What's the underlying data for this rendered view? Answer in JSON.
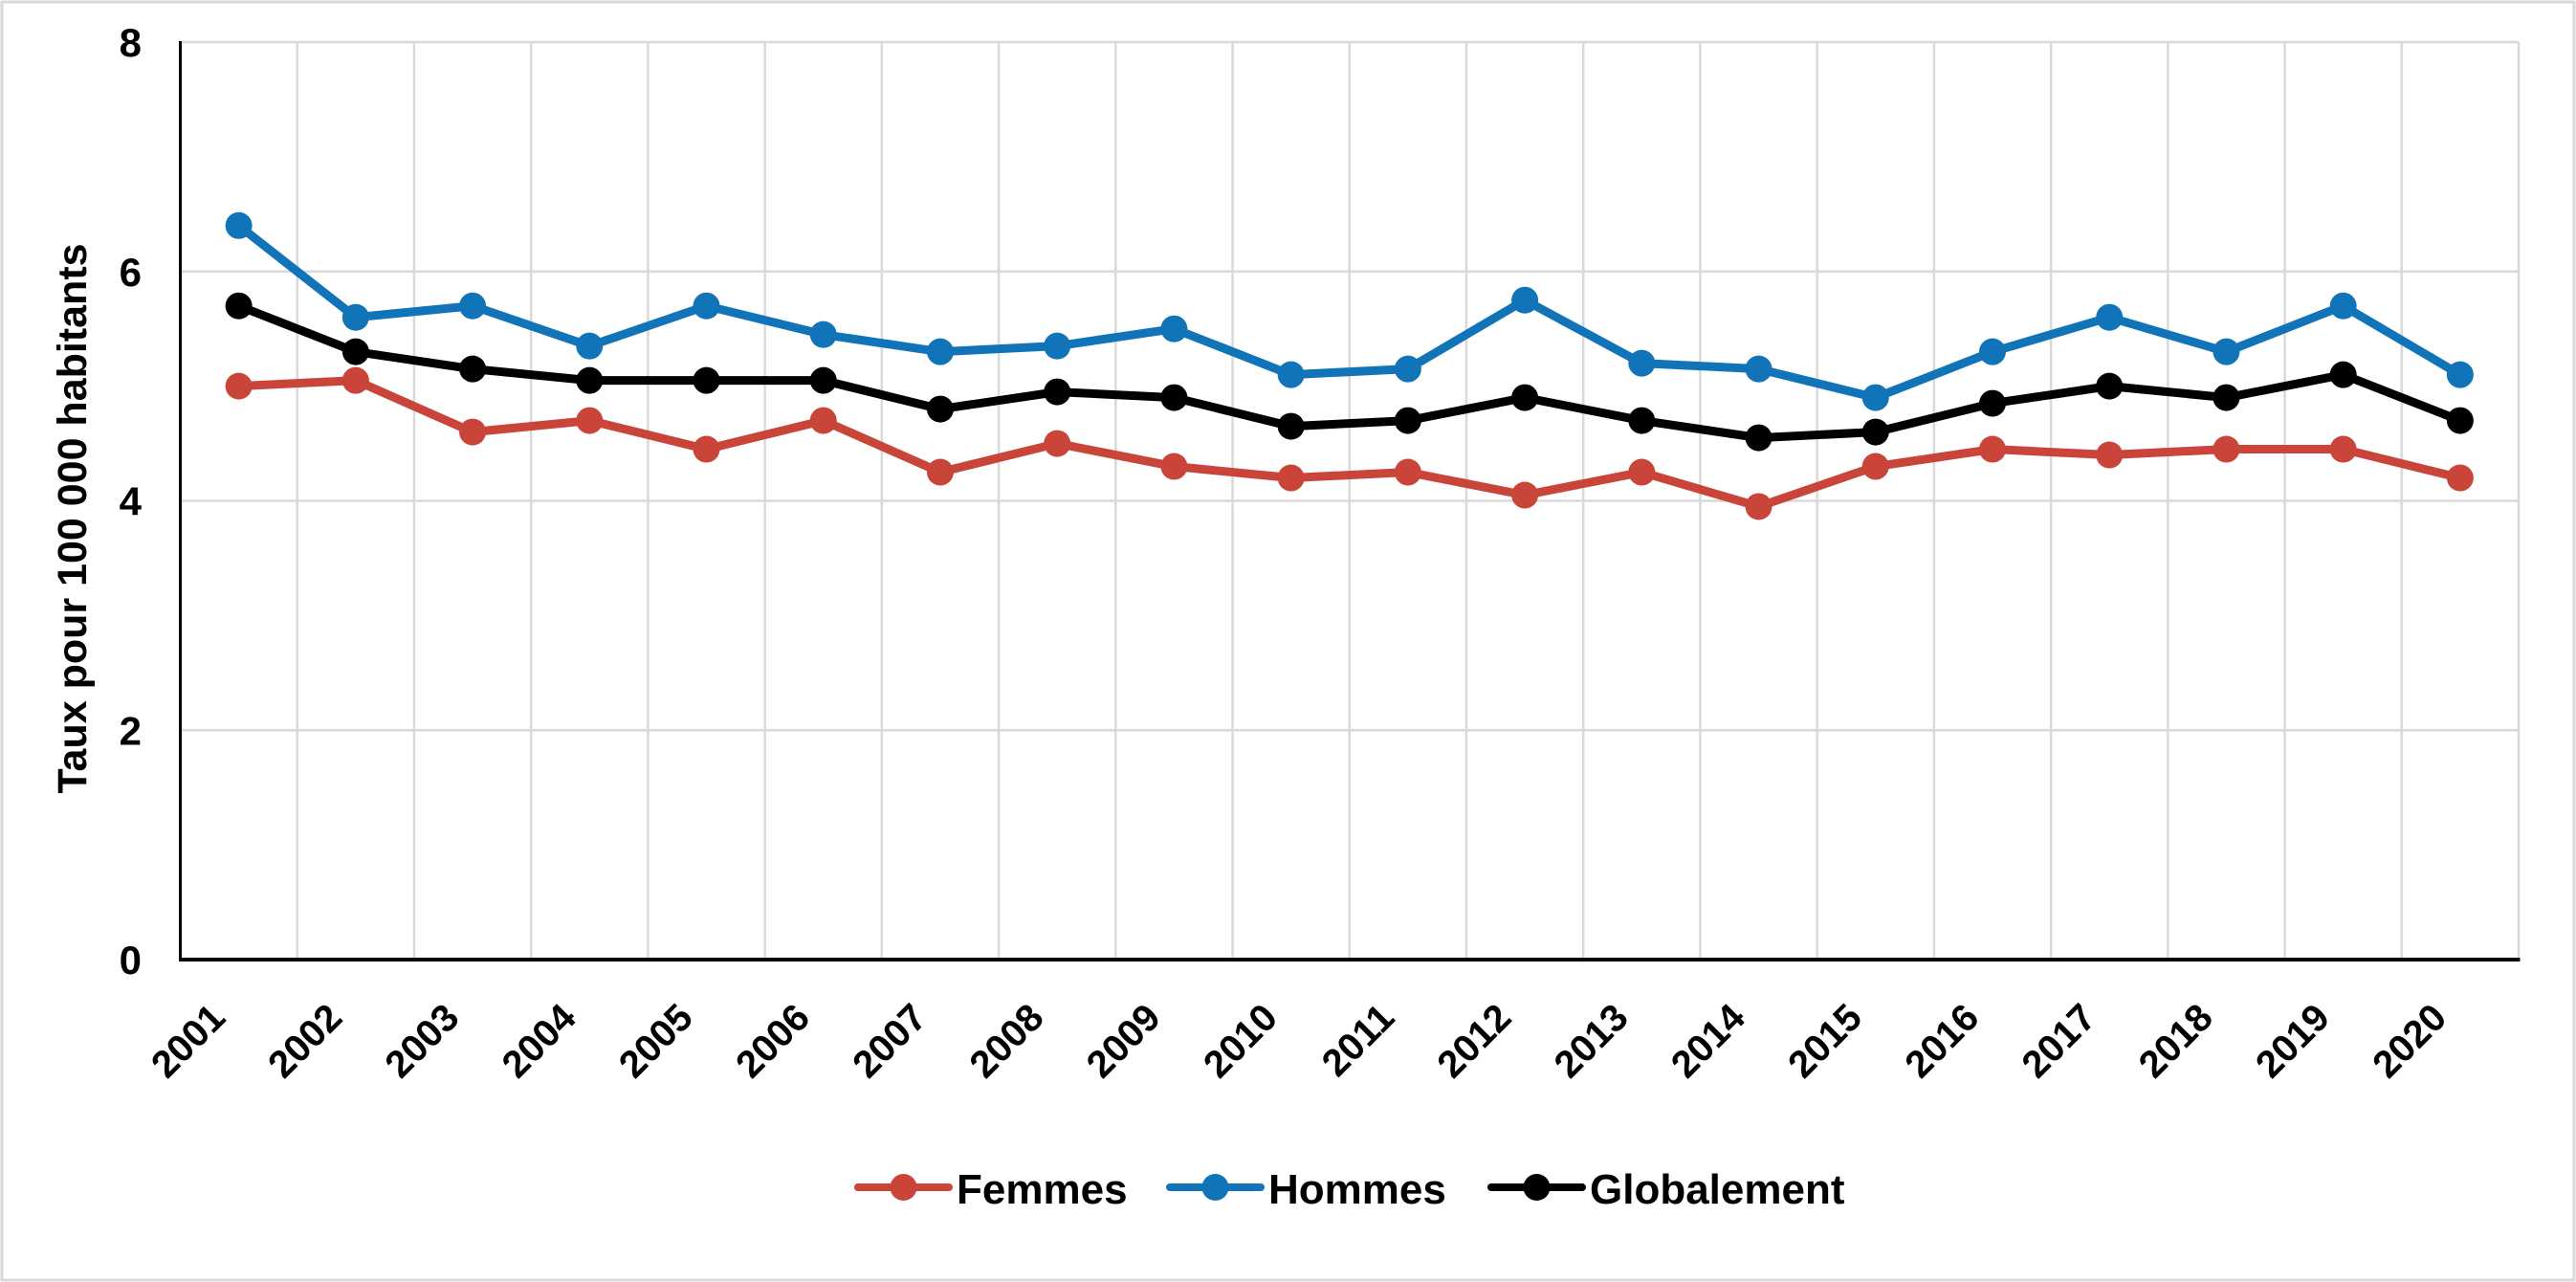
{
  "chart_data": {
    "type": "line",
    "title": "",
    "xlabel": "",
    "ylabel": "Taux pour 100 000 habitants",
    "ylim": [
      0,
      8
    ],
    "yticks": [
      0,
      2,
      4,
      6,
      8
    ],
    "grid": true,
    "legend_position": "bottom-center",
    "categories": [
      "2001",
      "2002",
      "2003",
      "2004",
      "2005",
      "2006",
      "2007",
      "2008",
      "2009",
      "2010",
      "2011",
      "2012",
      "2013",
      "2014",
      "2015",
      "2016",
      "2017",
      "2018",
      "2019",
      "2020"
    ],
    "series": [
      {
        "name": "Femmes",
        "color": "#C9453A",
        "values": [
          5.0,
          5.05,
          4.6,
          4.7,
          4.45,
          4.7,
          4.25,
          4.5,
          4.3,
          4.2,
          4.25,
          4.05,
          4.25,
          3.95,
          4.3,
          4.45,
          4.4,
          4.45,
          4.45,
          4.2
        ]
      },
      {
        "name": "Hommes",
        "color": "#1173B8",
        "values": [
          6.4,
          5.6,
          5.7,
          5.35,
          5.7,
          5.45,
          5.3,
          5.35,
          5.5,
          5.1,
          5.15,
          5.75,
          5.2,
          5.15,
          4.9,
          5.3,
          5.6,
          5.3,
          5.7,
          5.1
        ]
      },
      {
        "name": "Globalement",
        "color": "#000000",
        "values": [
          5.7,
          5.3,
          5.15,
          5.05,
          5.05,
          5.05,
          4.8,
          4.95,
          4.9,
          4.65,
          4.7,
          4.9,
          4.7,
          4.55,
          4.6,
          4.85,
          5.0,
          4.9,
          5.1,
          4.7
        ]
      }
    ]
  },
  "colors": {
    "background": "#FFFFFF",
    "gridline": "#D9D9D9",
    "axis": "#000000",
    "outer_border": "#D9D9D9"
  }
}
